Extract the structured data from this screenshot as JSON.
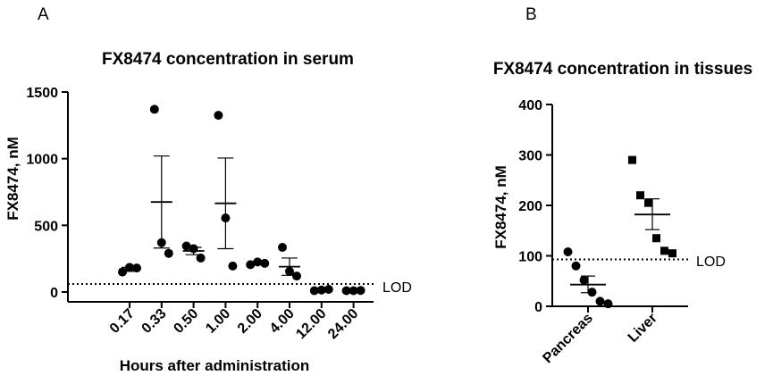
{
  "panels": {
    "a": {
      "letter": "A",
      "title": "FX8474 concentration in serum",
      "ylabel": "FX8474, nM",
      "xlabel": "Hours after administration",
      "lod_label": "LOD"
    },
    "b": {
      "letter": "B",
      "title": "FX8474 concentration in tissues",
      "ylabel": "FX8474, nM",
      "lod_label": "LOD"
    }
  },
  "chart_data": [
    {
      "type": "scatter",
      "title": "FX8474 concentration in serum",
      "xlabel": "Hours after administration",
      "ylabel": "FX8474, nM",
      "ylim": [
        0,
        1500
      ],
      "yticks": [
        0,
        500,
        1000,
        1500
      ],
      "categories": [
        "0.17",
        "0.33",
        "0.50",
        "1.00",
        "2.00",
        "4.00",
        "12.00",
        "24.00"
      ],
      "marker": "circle",
      "lod": 60,
      "lod_label": "LOD",
      "groups": [
        {
          "category": "0.17",
          "points": [
            150,
            185,
            180
          ],
          "mean": 170,
          "sem_low": 155,
          "sem_high": 185
        },
        {
          "category": "0.33",
          "points": [
            1370,
            370,
            290
          ],
          "mean": 675,
          "sem_low": 330,
          "sem_high": 1020
        },
        {
          "category": "0.50",
          "points": [
            345,
            325,
            255
          ],
          "mean": 308,
          "sem_low": 280,
          "sem_high": 335
        },
        {
          "category": "1.00",
          "points": [
            1325,
            555,
            195
          ],
          "mean": 665,
          "sem_low": 325,
          "sem_high": 1005
        },
        {
          "category": "2.00",
          "points": [
            205,
            225,
            215
          ],
          "mean": 215,
          "sem_low": 208,
          "sem_high": 222
        },
        {
          "category": "4.00",
          "points": [
            335,
            155,
            120
          ],
          "mean": 190,
          "sem_low": 125,
          "sem_high": 255
        },
        {
          "category": "12.00",
          "points": [
            10,
            15,
            20
          ],
          "mean": 15,
          "sem_low": 12,
          "sem_high": 18
        },
        {
          "category": "24.00",
          "points": [
            10,
            10,
            12
          ],
          "mean": 11,
          "sem_low": 10,
          "sem_high": 12
        }
      ]
    },
    {
      "type": "scatter",
      "title": "FX8474 concentration in tissues",
      "xlabel": "",
      "ylabel": "FX8474, nM",
      "ylim": [
        0,
        400
      ],
      "yticks": [
        0,
        100,
        200,
        300,
        400
      ],
      "categories": [
        "Pancreas",
        "Liver"
      ],
      "lod": 93,
      "lod_label": "LOD",
      "groups": [
        {
          "category": "Pancreas",
          "marker": "circle",
          "points": [
            108,
            80,
            52,
            28,
            10,
            5
          ],
          "mean": 43,
          "sem_low": 27,
          "sem_high": 60
        },
        {
          "category": "Liver",
          "marker": "square",
          "points": [
            290,
            220,
            205,
            135,
            110,
            105
          ],
          "mean": 182,
          "sem_low": 152,
          "sem_high": 213
        }
      ]
    }
  ]
}
